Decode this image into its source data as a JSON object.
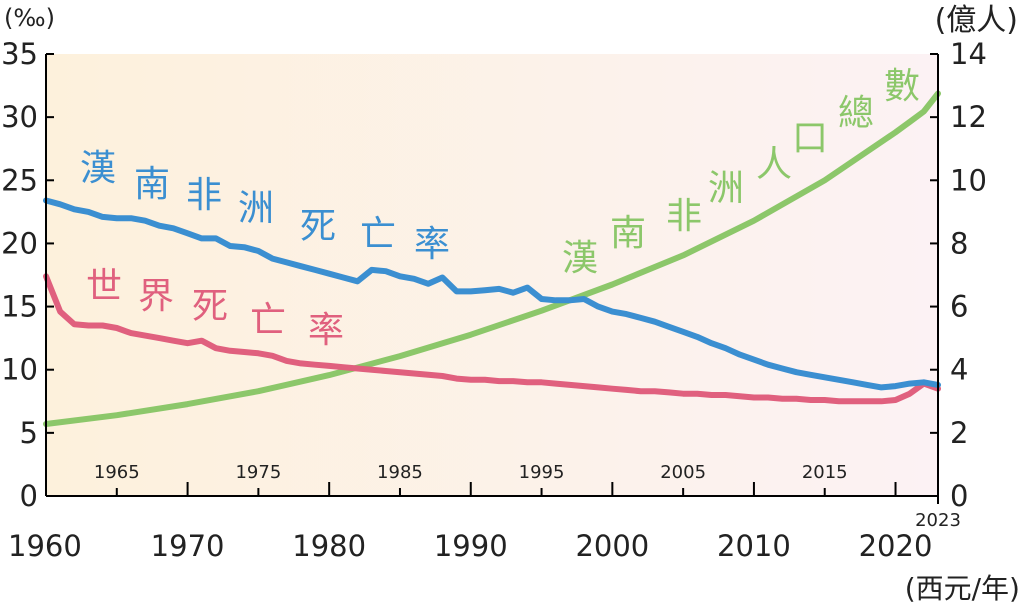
{
  "chart_data": {
    "type": "line",
    "left_axis_unit": "(‰)",
    "right_axis_unit": "(億人)",
    "x_axis_unit": "(西元/年)",
    "x_ticks_major": [
      "1960",
      "1970",
      "1980",
      "1990",
      "2000",
      "2010",
      "2020"
    ],
    "x_ticks_minor": [
      "1965",
      "1975",
      "1985",
      "1995",
      "2005",
      "2015"
    ],
    "x_end_label": "2023",
    "y_left_ticks": [
      "0",
      "5",
      "10",
      "15",
      "20",
      "25",
      "30",
      "35"
    ],
    "y_right_ticks": [
      "0",
      "2",
      "4",
      "6",
      "8",
      "10",
      "12",
      "14"
    ],
    "xlim": [
      1960,
      2023
    ],
    "ylim_left": [
      0,
      35
    ],
    "ylim_right": [
      0,
      14
    ],
    "grid": false,
    "colors": {
      "ssa_death_rate": "#3b8fd1",
      "world_death_rate": "#e0607e",
      "ssa_population": "#8cc76a",
      "background_left": "#fdf1dc",
      "background_right": "#fcf2f4"
    },
    "series": [
      {
        "name": "漢南非洲死亡率",
        "axis": "left",
        "x": [
          1960,
          1961,
          1962,
          1963,
          1964,
          1965,
          1966,
          1967,
          1968,
          1969,
          1970,
          1971,
          1972,
          1973,
          1974,
          1975,
          1976,
          1977,
          1978,
          1979,
          1980,
          1981,
          1982,
          1983,
          1984,
          1985,
          1986,
          1987,
          1988,
          1989,
          1990,
          1991,
          1992,
          1993,
          1994,
          1995,
          1996,
          1997,
          1998,
          1999,
          2000,
          2001,
          2002,
          2003,
          2004,
          2005,
          2006,
          2007,
          2008,
          2009,
          2010,
          2011,
          2012,
          2013,
          2014,
          2015,
          2016,
          2017,
          2018,
          2019,
          2020,
          2021,
          2022,
          2023
        ],
        "values": [
          23.4,
          23.1,
          22.7,
          22.5,
          22.1,
          22.0,
          22.0,
          21.8,
          21.4,
          21.2,
          20.8,
          20.4,
          20.4,
          19.8,
          19.7,
          19.4,
          18.8,
          18.5,
          18.2,
          17.9,
          17.6,
          17.3,
          17.0,
          17.9,
          17.8,
          17.4,
          17.2,
          16.8,
          17.3,
          16.2,
          16.2,
          16.3,
          16.4,
          16.1,
          16.5,
          15.6,
          15.5,
          15.5,
          15.6,
          15.0,
          14.6,
          14.4,
          14.1,
          13.8,
          13.4,
          13.0,
          12.6,
          12.1,
          11.7,
          11.2,
          10.8,
          10.4,
          10.1,
          9.8,
          9.6,
          9.4,
          9.2,
          9.0,
          8.8,
          8.6,
          8.7,
          8.9,
          9.0,
          8.8
        ]
      },
      {
        "name": "世界死亡率",
        "axis": "left",
        "x": [
          1960,
          1961,
          1962,
          1963,
          1964,
          1965,
          1966,
          1967,
          1968,
          1969,
          1970,
          1971,
          1972,
          1973,
          1974,
          1975,
          1976,
          1977,
          1978,
          1979,
          1980,
          1981,
          1982,
          1983,
          1984,
          1985,
          1986,
          1987,
          1988,
          1989,
          1990,
          1991,
          1992,
          1993,
          1994,
          1995,
          1996,
          1997,
          1998,
          1999,
          2000,
          2001,
          2002,
          2003,
          2004,
          2005,
          2006,
          2007,
          2008,
          2009,
          2010,
          2011,
          2012,
          2013,
          2014,
          2015,
          2016,
          2017,
          2018,
          2019,
          2020,
          2021,
          2022,
          2023
        ],
        "values": [
          17.4,
          14.6,
          13.6,
          13.5,
          13.5,
          13.3,
          12.9,
          12.7,
          12.5,
          12.3,
          12.1,
          12.3,
          11.7,
          11.5,
          11.4,
          11.3,
          11.1,
          10.7,
          10.5,
          10.4,
          10.3,
          10.2,
          10.1,
          10.0,
          9.9,
          9.8,
          9.7,
          9.6,
          9.5,
          9.3,
          9.2,
          9.2,
          9.1,
          9.1,
          9.0,
          9.0,
          8.9,
          8.8,
          8.7,
          8.6,
          8.5,
          8.4,
          8.3,
          8.3,
          8.2,
          8.1,
          8.1,
          8.0,
          8.0,
          7.9,
          7.8,
          7.8,
          7.7,
          7.7,
          7.6,
          7.6,
          7.5,
          7.5,
          7.5,
          7.5,
          7.6,
          8.1,
          8.9,
          8.5
        ]
      },
      {
        "name": "漢南非洲人口總數",
        "axis": "right",
        "x": [
          1960,
          1965,
          1970,
          1975,
          1980,
          1985,
          1990,
          1995,
          2000,
          2005,
          2010,
          2015,
          2020,
          2021,
          2022,
          2023
        ],
        "values": [
          2.28,
          2.56,
          2.91,
          3.32,
          3.83,
          4.43,
          5.11,
          5.87,
          6.7,
          7.62,
          8.72,
          10.0,
          11.52,
          11.85,
          12.18,
          12.75
        ]
      }
    ],
    "annotations": [
      {
        "text_chars": [
          "漢",
          "南",
          "非",
          "洲",
          "死",
          "亡",
          "率"
        ],
        "series": "漢南非洲死亡率"
      },
      {
        "text_chars": [
          "世",
          "界",
          "死",
          "亡",
          "率"
        ],
        "series": "世界死亡率"
      },
      {
        "text_chars": [
          "漢",
          "南",
          "非",
          "洲",
          "人",
          "口",
          "總",
          "數"
        ],
        "series": "漢南非洲人口總數"
      }
    ]
  }
}
